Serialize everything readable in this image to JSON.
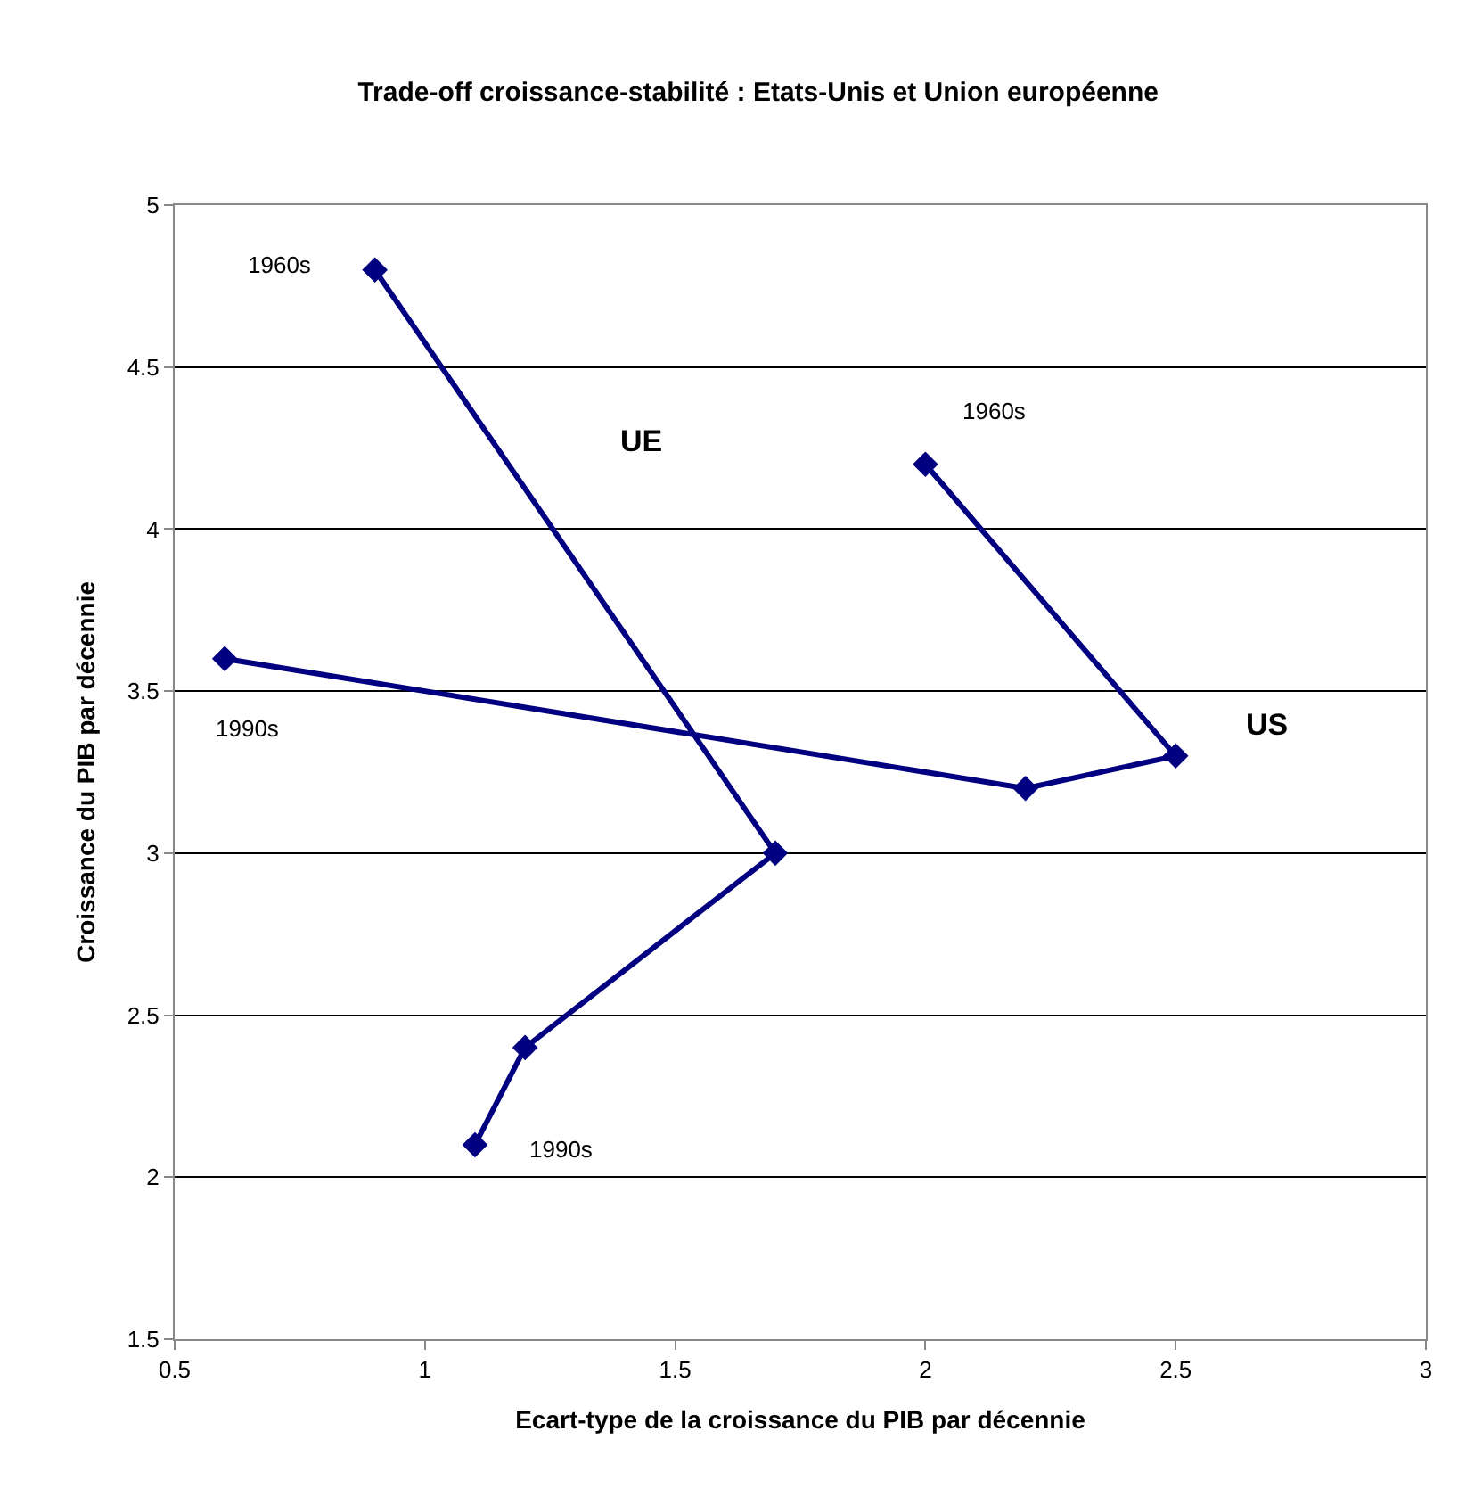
{
  "chart_data": {
    "type": "line",
    "title": "Trade-off croissance-stabilité : Etats-Unis et Union européenne",
    "xlabel": "Ecart-type de la croissance du PIB par décennie",
    "ylabel": "Croissance du PIB par décennie",
    "series": [
      {
        "color": "#000080",
        "x": [
          0.9,
          1.7,
          1.2,
          1.1
        ],
        "values": [
          4.8,
          3.0,
          2.4,
          2.1
        ]
      },
      {
        "color": "#000080",
        "x": [
          2.0,
          2.5,
          2.2,
          0.6
        ],
        "values": [
          4.2,
          3.3,
          3.2,
          3.6
        ]
      }
    ],
    "annotations": [
      "1960s",
      "UE",
      "1990s",
      "1960s",
      "US",
      "1990s"
    ],
    "xlim": [
      0.5,
      3
    ],
    "xticks": [
      0.5,
      1,
      1.5,
      2,
      2.5,
      3
    ],
    "ylim": [
      1.5,
      5
    ],
    "yticks": [
      1.5,
      2,
      2.5,
      3,
      3.5,
      4,
      4.5,
      5
    ],
    "grid": "y",
    "marker": "diamond",
    "line_style": "solid"
  }
}
